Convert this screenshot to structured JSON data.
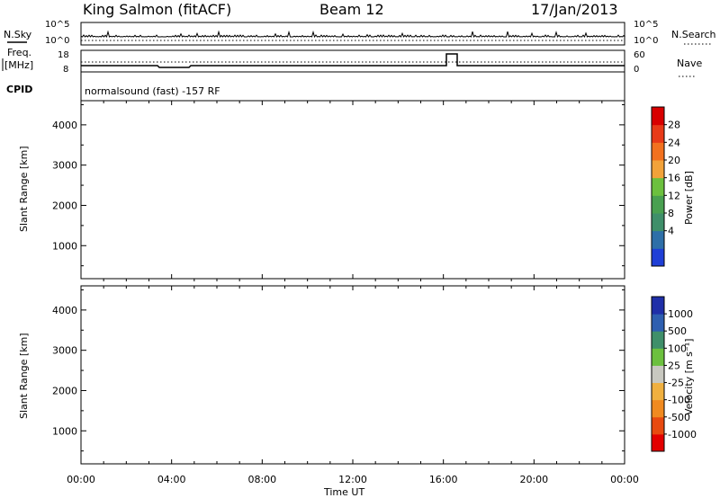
{
  "header": {
    "station": "King Salmon (fitACF)",
    "beam": "Beam 12",
    "date": "17/Jan/2013"
  },
  "side_labels": {
    "nsky": "N.Sky",
    "freq": "Freq.",
    "freq_unit": "[MHz]",
    "cpid": "CPID",
    "nsearch": "N.Search",
    "nave": "Nave"
  },
  "cpid_text": "normalsound (fast) -157 RF",
  "colors": {
    "power": [
      "#1f3fd6",
      "#2e6fa8",
      "#3f8f6a",
      "#49a050",
      "#6cc03e",
      "#f2a23a",
      "#f2711f",
      "#e83a18",
      "#d80000"
    ],
    "velocity": [
      "#e30000",
      "#e84a10",
      "#f08a20",
      "#f0b040",
      "#c8c8c0",
      "#6cc03e",
      "#3f8f6a",
      "#2e5fb0",
      "#1f2fa8"
    ]
  },
  "chart_data": [
    {
      "type": "line",
      "name": "nsky-nsearch",
      "ylim_left": [
        "10^5",
        "10^0"
      ],
      "ylim_right": [
        "10^5",
        "10^0"
      ]
    },
    {
      "type": "line",
      "name": "freq-nave",
      "yticks_left": [
        "18",
        "8"
      ],
      "yticks_right": [
        "60",
        "0"
      ]
    },
    {
      "type": "heatmap",
      "name": "power",
      "ylabel": "Slant Range [km]",
      "yticks": [
        "4000",
        "3000",
        "2000",
        "1000"
      ],
      "ylim": [
        180,
        4600
      ],
      "colorbar_label": "Power [dB]",
      "colorbar_ticks": [
        "28",
        "24",
        "20",
        "16",
        "12",
        "8",
        "4"
      ]
    },
    {
      "type": "heatmap",
      "name": "velocity",
      "ylabel": "Slant Range [km]",
      "yticks": [
        "4000",
        "3000",
        "2000",
        "1000"
      ],
      "ylim": [
        180,
        4600
      ],
      "colorbar_label": "Velocity [m s⁻¹]",
      "colorbar_ticks": [
        "1000",
        "500",
        "100",
        "25",
        "-25",
        "-100",
        "-500",
        "-1000"
      ]
    }
  ],
  "xaxis": {
    "xlabel": "Time UT",
    "ticks": [
      "00:00",
      "04:00",
      "08:00",
      "12:00",
      "16:00",
      "20:00",
      "00:00"
    ]
  }
}
